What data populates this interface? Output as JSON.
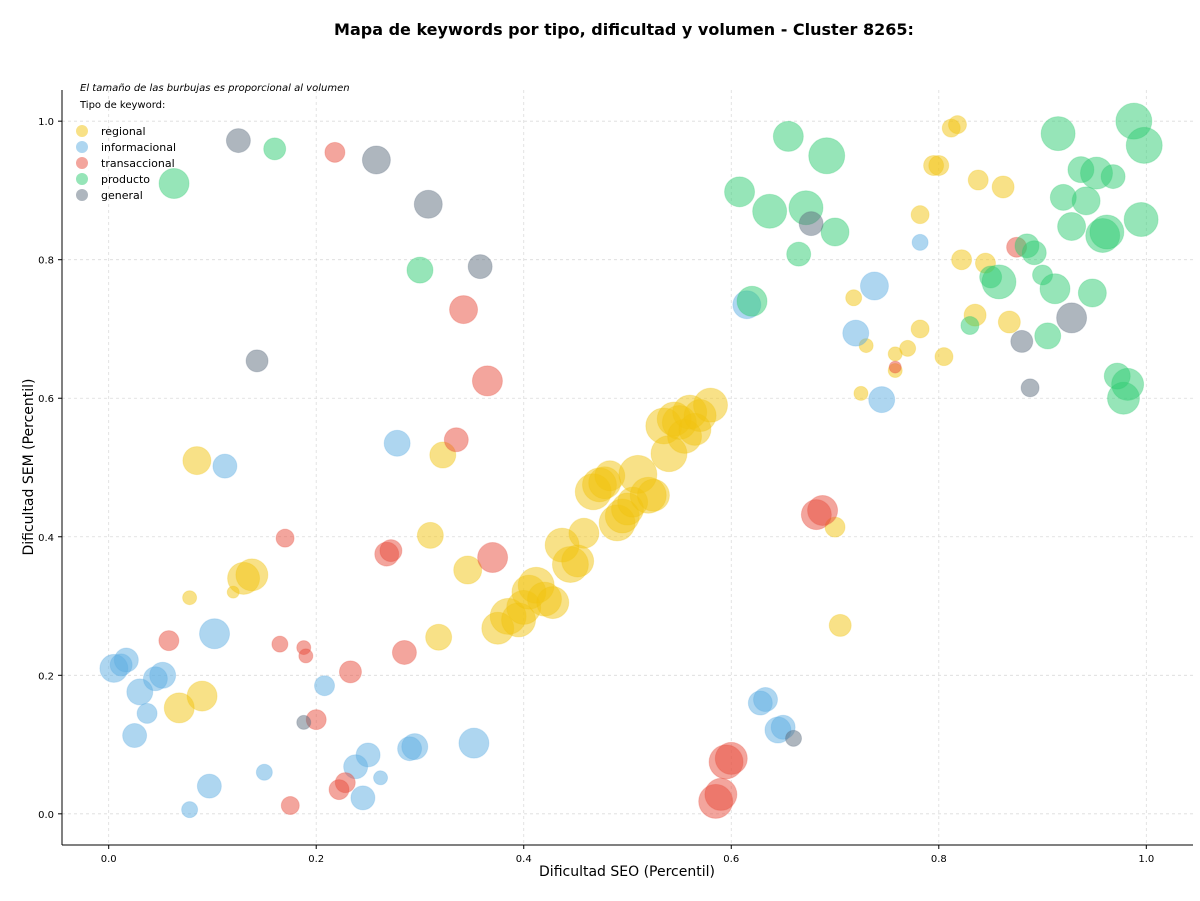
{
  "chart_data": {
    "type": "scatter",
    "title": "Mapa de keywords por tipo, dificultad y volumen - Cluster 8265:",
    "xlabel": "Dificultad SEO (Percentil)",
    "ylabel": "Dificultad SEM (Percentil)",
    "xlim": [
      -0.045,
      1.045
    ],
    "ylim": [
      -0.045,
      1.045
    ],
    "xticks": [
      "0.0",
      "0.2",
      "0.4",
      "0.6",
      "0.8",
      "1.0"
    ],
    "yticks": [
      "0.0",
      "0.2",
      "0.4",
      "0.6",
      "0.8",
      "1.0"
    ],
    "grid": true,
    "size_note": "El tamaño de las burbujas es proporcional al volumen",
    "legend_title": "Tipo de keyword:",
    "legend_position": "top-left",
    "series": [
      {
        "name": "regional",
        "color": "#F1C40F",
        "points": [
          [
            0.085,
            0.51,
            14
          ],
          [
            0.12,
            0.32,
            6
          ],
          [
            0.078,
            0.312,
            7
          ],
          [
            0.13,
            0.34,
            16
          ],
          [
            0.138,
            0.345,
            16
          ],
          [
            0.068,
            0.153,
            15
          ],
          [
            0.09,
            0.17,
            15
          ],
          [
            0.31,
            0.402,
            13
          ],
          [
            0.322,
            0.518,
            13
          ],
          [
            0.318,
            0.255,
            13
          ],
          [
            0.346,
            0.352,
            14
          ],
          [
            0.375,
            0.268,
            16
          ],
          [
            0.385,
            0.285,
            18
          ],
          [
            0.395,
            0.28,
            17
          ],
          [
            0.4,
            0.298,
            17
          ],
          [
            0.405,
            0.32,
            17
          ],
          [
            0.412,
            0.33,
            18
          ],
          [
            0.42,
            0.31,
            17
          ],
          [
            0.428,
            0.305,
            16
          ],
          [
            0.437,
            0.388,
            17
          ],
          [
            0.445,
            0.36,
            18
          ],
          [
            0.452,
            0.365,
            16
          ],
          [
            0.458,
            0.405,
            15
          ],
          [
            0.467,
            0.465,
            18
          ],
          [
            0.473,
            0.475,
            17
          ],
          [
            0.478,
            0.478,
            16
          ],
          [
            0.483,
            0.488,
            15
          ],
          [
            0.49,
            0.42,
            18
          ],
          [
            0.495,
            0.43,
            17
          ],
          [
            0.5,
            0.44,
            16
          ],
          [
            0.505,
            0.45,
            15
          ],
          [
            0.51,
            0.49,
            19
          ],
          [
            0.52,
            0.46,
            18
          ],
          [
            0.525,
            0.46,
            16
          ],
          [
            0.535,
            0.56,
            18
          ],
          [
            0.54,
            0.52,
            18
          ],
          [
            0.545,
            0.57,
            17
          ],
          [
            0.55,
            0.565,
            17
          ],
          [
            0.555,
            0.545,
            17
          ],
          [
            0.56,
            0.58,
            17
          ],
          [
            0.565,
            0.555,
            16
          ],
          [
            0.57,
            0.575,
            16
          ],
          [
            0.58,
            0.59,
            17
          ],
          [
            0.7,
            0.414,
            10
          ],
          [
            0.705,
            0.272,
            11
          ],
          [
            0.718,
            0.745,
            8
          ],
          [
            0.725,
            0.607,
            7
          ],
          [
            0.73,
            0.676,
            7
          ],
          [
            0.758,
            0.664,
            7
          ],
          [
            0.758,
            0.64,
            7
          ],
          [
            0.77,
            0.672,
            8
          ],
          [
            0.782,
            0.7,
            9
          ],
          [
            0.782,
            0.865,
            9
          ],
          [
            0.795,
            0.936,
            10
          ],
          [
            0.8,
            0.936,
            10
          ],
          [
            0.805,
            0.66,
            9
          ],
          [
            0.812,
            0.99,
            9
          ],
          [
            0.818,
            0.995,
            9
          ],
          [
            0.822,
            0.8,
            10
          ],
          [
            0.835,
            0.72,
            11
          ],
          [
            0.838,
            0.915,
            10
          ],
          [
            0.845,
            0.795,
            10
          ],
          [
            0.862,
            0.905,
            11
          ],
          [
            0.868,
            0.71,
            11
          ]
        ]
      },
      {
        "name": "informacional",
        "color": "#5DADE2",
        "points": [
          [
            0.005,
            0.21,
            14
          ],
          [
            0.012,
            0.215,
            11
          ],
          [
            0.017,
            0.222,
            12
          ],
          [
            0.025,
            0.113,
            12
          ],
          [
            0.03,
            0.176,
            13
          ],
          [
            0.037,
            0.145,
            10
          ],
          [
            0.045,
            0.195,
            12
          ],
          [
            0.052,
            0.2,
            13
          ],
          [
            0.078,
            0.006,
            8
          ],
          [
            0.097,
            0.04,
            12
          ],
          [
            0.102,
            0.26,
            15
          ],
          [
            0.112,
            0.502,
            12
          ],
          [
            0.15,
            0.06,
            8
          ],
          [
            0.208,
            0.185,
            10
          ],
          [
            0.238,
            0.068,
            12
          ],
          [
            0.245,
            0.023,
            12
          ],
          [
            0.25,
            0.085,
            12
          ],
          [
            0.262,
            0.052,
            7
          ],
          [
            0.278,
            0.535,
            13
          ],
          [
            0.29,
            0.094,
            12
          ],
          [
            0.295,
            0.097,
            13
          ],
          [
            0.352,
            0.102,
            15
          ],
          [
            0.615,
            0.735,
            14
          ],
          [
            0.628,
            0.16,
            12
          ],
          [
            0.633,
            0.165,
            12
          ],
          [
            0.645,
            0.121,
            13
          ],
          [
            0.65,
            0.125,
            12
          ],
          [
            0.72,
            0.694,
            13
          ],
          [
            0.738,
            0.762,
            14
          ],
          [
            0.745,
            0.598,
            13
          ],
          [
            0.782,
            0.825,
            8
          ]
        ]
      },
      {
        "name": "transaccional",
        "color": "#E74C3C",
        "points": [
          [
            0.058,
            0.25,
            10
          ],
          [
            0.165,
            0.245,
            8
          ],
          [
            0.17,
            0.398,
            9
          ],
          [
            0.175,
            0.012,
            9
          ],
          [
            0.188,
            0.24,
            7
          ],
          [
            0.19,
            0.228,
            7
          ],
          [
            0.2,
            0.136,
            10
          ],
          [
            0.218,
            0.955,
            10
          ],
          [
            0.222,
            0.035,
            10
          ],
          [
            0.228,
            0.045,
            10
          ],
          [
            0.233,
            0.205,
            11
          ],
          [
            0.268,
            0.375,
            12
          ],
          [
            0.272,
            0.38,
            11
          ],
          [
            0.285,
            0.233,
            12
          ],
          [
            0.335,
            0.54,
            12
          ],
          [
            0.342,
            0.728,
            14
          ],
          [
            0.365,
            0.625,
            15
          ],
          [
            0.37,
            0.37,
            15
          ],
          [
            0.585,
            0.018,
            17
          ],
          [
            0.59,
            0.028,
            16
          ],
          [
            0.595,
            0.075,
            17
          ],
          [
            0.6,
            0.08,
            16
          ],
          [
            0.682,
            0.432,
            15
          ],
          [
            0.688,
            0.438,
            15
          ],
          [
            0.758,
            0.645,
            6
          ],
          [
            0.875,
            0.818,
            10
          ]
        ]
      },
      {
        "name": "producto",
        "color": "#2ECC71",
        "points": [
          [
            0.063,
            0.91,
            15
          ],
          [
            0.16,
            0.96,
            11
          ],
          [
            0.3,
            0.785,
            13
          ],
          [
            0.608,
            0.898,
            15
          ],
          [
            0.62,
            0.74,
            15
          ],
          [
            0.637,
            0.87,
            17
          ],
          [
            0.655,
            0.978,
            15
          ],
          [
            0.665,
            0.808,
            12
          ],
          [
            0.672,
            0.875,
            17
          ],
          [
            0.692,
            0.95,
            18
          ],
          [
            0.7,
            0.84,
            14
          ],
          [
            0.83,
            0.705,
            9
          ],
          [
            0.85,
            0.775,
            11
          ],
          [
            0.858,
            0.768,
            17
          ],
          [
            0.885,
            0.82,
            12
          ],
          [
            0.892,
            0.81,
            12
          ],
          [
            0.9,
            0.778,
            10
          ],
          [
            0.905,
            0.69,
            13
          ],
          [
            0.912,
            0.758,
            15
          ],
          [
            0.915,
            0.982,
            17
          ],
          [
            0.92,
            0.89,
            13
          ],
          [
            0.928,
            0.848,
            14
          ],
          [
            0.937,
            0.93,
            13
          ],
          [
            0.942,
            0.885,
            14
          ],
          [
            0.948,
            0.752,
            14
          ],
          [
            0.952,
            0.925,
            16
          ],
          [
            0.958,
            0.835,
            17
          ],
          [
            0.962,
            0.84,
            17
          ],
          [
            0.968,
            0.92,
            12
          ],
          [
            0.972,
            0.632,
            13
          ],
          [
            0.978,
            0.6,
            16
          ],
          [
            0.982,
            0.62,
            16
          ],
          [
            0.988,
            1.0,
            18
          ],
          [
            0.998,
            0.965,
            18
          ],
          [
            0.995,
            0.858,
            17
          ]
        ]
      },
      {
        "name": "general",
        "color": "#5D6D7E",
        "points": [
          [
            0.125,
            0.972,
            12
          ],
          [
            0.143,
            0.654,
            11
          ],
          [
            0.188,
            0.132,
            7
          ],
          [
            0.258,
            0.944,
            14
          ],
          [
            0.308,
            0.88,
            14
          ],
          [
            0.358,
            0.79,
            12
          ],
          [
            0.66,
            0.109,
            8
          ],
          [
            0.677,
            0.852,
            12
          ],
          [
            0.88,
            0.682,
            11
          ],
          [
            0.888,
            0.615,
            9
          ],
          [
            0.928,
            0.716,
            15
          ]
        ]
      }
    ]
  }
}
